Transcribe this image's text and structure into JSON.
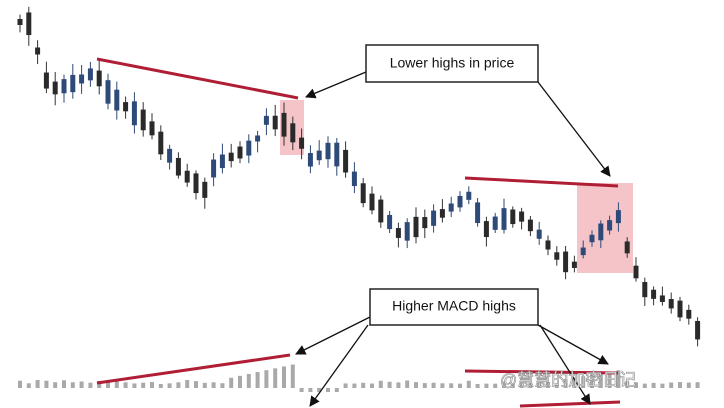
{
  "annotations": {
    "price_label": "Lower highs in price",
    "macd_label": "Higher MACD highs"
  },
  "watermark": "@慧慧的加密日记"
}
